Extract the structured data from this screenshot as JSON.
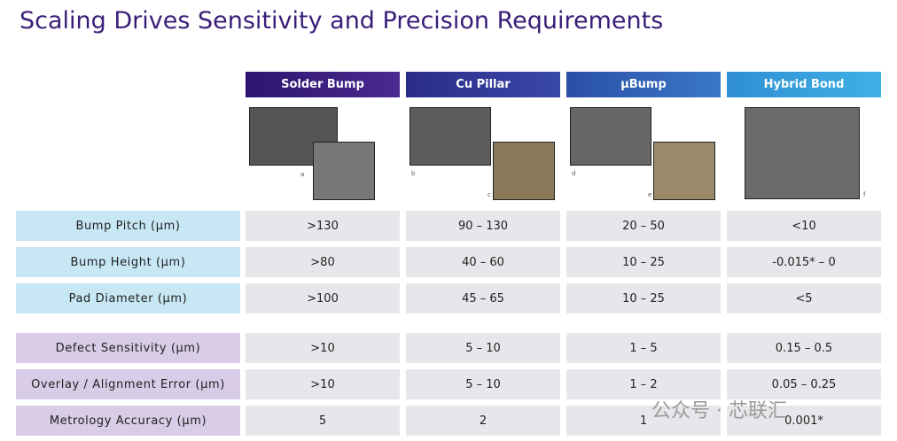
{
  "title": "Scaling Drives Sensitivity and Precision Requirements",
  "columns": [
    "Solder Bump",
    "Cu Pillar",
    "μBump",
    "Hybrid Bond"
  ],
  "image_labels": [
    [
      "a"
    ],
    [
      "b",
      "c"
    ],
    [
      "d",
      "e"
    ],
    [
      "f"
    ]
  ],
  "rows": [
    {
      "label": "Bump Pitch (μm)",
      "values": [
        ">130",
        "90 – 130",
        "20 – 50",
        "<10"
      ]
    },
    {
      "label": "Bump Height (μm)",
      "values": [
        ">80",
        "40 – 60",
        "10 – 25",
        "-0.015* – 0"
      ]
    },
    {
      "label": "Pad Diameter (μm)",
      "values": [
        ">100",
        "45 – 65",
        "10 – 25",
        "<5"
      ]
    },
    {
      "label": "Defect Sensitivity (μm)",
      "values": [
        ">10",
        "5 – 10",
        "1 – 5",
        "0.15 – 0.5"
      ]
    },
    {
      "label": "Overlay / Alignment Error (μm)",
      "values": [
        ">10",
        "5 – 10",
        "1 – 2",
        "0.05 – 0.25"
      ]
    },
    {
      "label": "Metrology Accuracy (μm)",
      "values": [
        "5",
        "2",
        "1",
        "0.001*"
      ]
    }
  ],
  "watermark": "公众号 · 芯联汇"
}
